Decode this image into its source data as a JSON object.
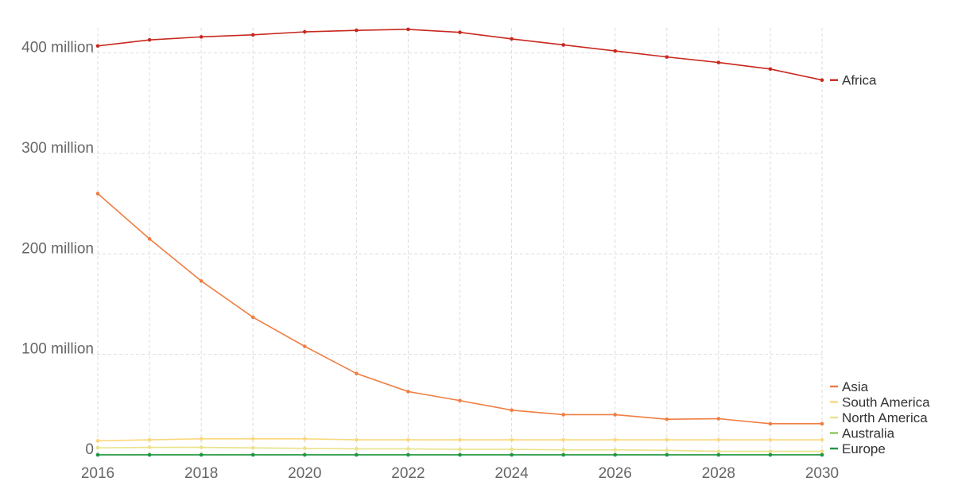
{
  "chart_data": {
    "type": "line",
    "title": "",
    "xlabel": "",
    "ylabel": "",
    "x": [
      2016,
      2017,
      2018,
      2019,
      2020,
      2021,
      2022,
      2023,
      2024,
      2025,
      2026,
      2027,
      2028,
      2029,
      2030
    ],
    "xlim": [
      2016,
      2030
    ],
    "ylim": [
      0,
      425000000
    ],
    "x_ticks": [
      {
        "value": 2016,
        "label": "2016"
      },
      {
        "value": 2018,
        "label": "2018"
      },
      {
        "value": 2020,
        "label": "2020"
      },
      {
        "value": 2022,
        "label": "2022"
      },
      {
        "value": 2024,
        "label": "2024"
      },
      {
        "value": 2026,
        "label": "2026"
      },
      {
        "value": 2028,
        "label": "2028"
      },
      {
        "value": 2030,
        "label": "2030"
      }
    ],
    "y_ticks": [
      {
        "value": 0,
        "label": "0"
      },
      {
        "value": 100000000,
        "label": "100 million"
      },
      {
        "value": 200000000,
        "label": "200 million"
      },
      {
        "value": 300000000,
        "label": "300 million"
      },
      {
        "value": 400000000,
        "label": "400 million"
      }
    ],
    "grid": true,
    "legend_placement": "right",
    "series": [
      {
        "name": "Africa",
        "color": "#c8281e",
        "values": [
          407000000,
          413000000,
          416000000,
          418000000,
          421000000,
          422500000,
          423500000,
          420500000,
          414000000,
          408000000,
          402000000,
          396000000,
          390500000,
          384000000,
          373000000
        ]
      },
      {
        "name": "Asia",
        "color": "#f07d41",
        "values": [
          260000000,
          215000000,
          173000000,
          137000000,
          108000000,
          81000000,
          63000000,
          54000000,
          44500000,
          40000000,
          40000000,
          35500000,
          36000000,
          31000000,
          31000000
        ]
      },
      {
        "name": "South America",
        "color": "#fad87d",
        "values": [
          14000000,
          15000000,
          16000000,
          16000000,
          16000000,
          15000000,
          15000000,
          15000000,
          15000000,
          15000000,
          15000000,
          15000000,
          15000000,
          15000000,
          15000000
        ]
      },
      {
        "name": "North America",
        "color": "#eae28a",
        "values": [
          7000000,
          7500000,
          7500000,
          7000000,
          6500000,
          6000000,
          6000000,
          5500000,
          5500000,
          5000000,
          5000000,
          4500000,
          3500000,
          3500000,
          3500000
        ]
      },
      {
        "name": "Australia",
        "color": "#8cc85a",
        "values": [
          200000,
          200000,
          200000,
          200000,
          200000,
          200000,
          200000,
          200000,
          200000,
          200000,
          200000,
          200000,
          200000,
          200000,
          200000
        ]
      },
      {
        "name": "Europe",
        "color": "#1e9646",
        "values": [
          0,
          0,
          0,
          0,
          0,
          0,
          0,
          0,
          0,
          0,
          0,
          0,
          0,
          0,
          0
        ]
      }
    ]
  }
}
